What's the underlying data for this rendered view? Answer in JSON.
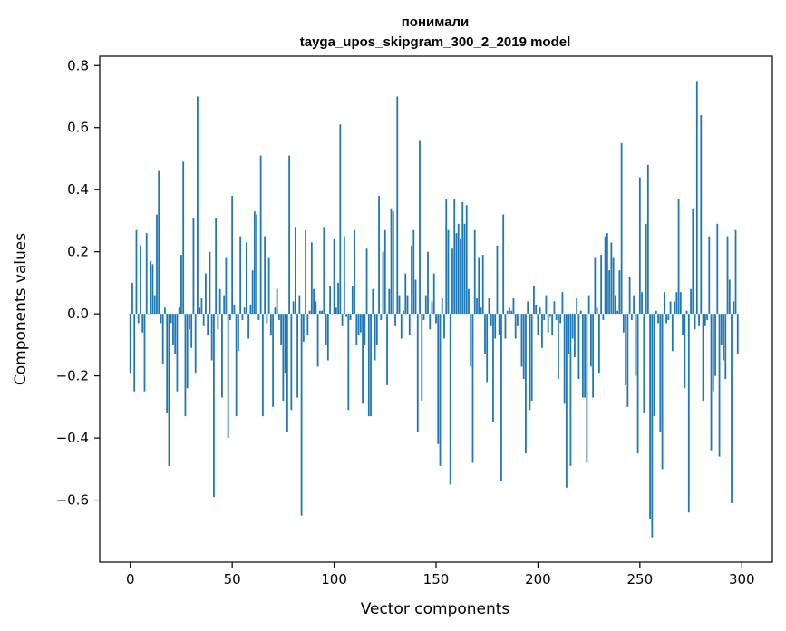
{
  "chart_data": {
    "type": "bar",
    "title_line1": "понимали",
    "title_line2": "tayga_upos_skipgram_300_2_2019 model",
    "xlabel": "Vector components",
    "ylabel": "Components values",
    "xlim": [
      -15,
      315
    ],
    "ylim": [
      -0.8,
      0.83
    ],
    "x_ticks": [
      0,
      50,
      100,
      150,
      200,
      250,
      300
    ],
    "x_tick_labels": [
      "0",
      "50",
      "100",
      "150",
      "200",
      "250",
      "300"
    ],
    "y_ticks": [
      -0.6,
      -0.4,
      -0.2,
      0.0,
      0.2,
      0.4,
      0.6,
      0.8
    ],
    "y_tick_labels": [
      "−0.6",
      "−0.4",
      "−0.2",
      "0.0",
      "0.2",
      "0.4",
      "0.6",
      "0.8"
    ],
    "bar_color": "#1f77b4",
    "values": [
      -0.19,
      0.1,
      -0.25,
      0.27,
      -0.03,
      0.22,
      -0.06,
      -0.25,
      0.26,
      0.0,
      0.17,
      0.16,
      0.06,
      0.32,
      0.46,
      -0.03,
      -0.16,
      0.02,
      -0.32,
      -0.49,
      -0.03,
      -0.1,
      -0.13,
      -0.25,
      0.02,
      0.19,
      0.49,
      -0.33,
      -0.24,
      -0.05,
      -0.11,
      0.31,
      -0.19,
      0.7,
      0.02,
      0.05,
      -0.04,
      0.13,
      -0.07,
      0.2,
      -0.15,
      -0.59,
      0.31,
      -0.05,
      0.08,
      -0.27,
      0.06,
      0.18,
      -0.4,
      -0.02,
      0.38,
      0.03,
      -0.33,
      -0.12,
      0.25,
      -0.02,
      0.02,
      0.23,
      -0.08,
      0.03,
      0.14,
      0.33,
      0.32,
      -0.02,
      0.51,
      -0.33,
      0.25,
      -0.03,
      0.18,
      -0.07,
      -0.3,
      0.02,
      0.08,
      -0.02,
      -0.1,
      -0.28,
      -0.19,
      -0.38,
      0.51,
      -0.31,
      0.04,
      0.28,
      -0.27,
      0.06,
      -0.65,
      -0.09,
      0.27,
      -0.07,
      0.01,
      0.23,
      0.08,
      0.04,
      -0.17,
      0.01,
      0.01,
      0.28,
      -0.1,
      -0.15,
      0.09,
      0.0,
      0.24,
      0.02,
      0.1,
      0.61,
      -0.04,
      0.25,
      -0.01,
      -0.31,
      -0.02,
      0.09,
      0.27,
      -0.1,
      -0.07,
      -0.06,
      -0.29,
      -0.1,
      0.21,
      -0.33,
      -0.33,
      0.08,
      -0.15,
      -0.1,
      0.38,
      -0.02,
      0.2,
      0.27,
      -0.23,
      0.08,
      0.34,
      0.33,
      -0.04,
      0.7,
      0.06,
      -0.08,
      0.01,
      0.13,
      0.06,
      -0.07,
      0.22,
      0.27,
      0.11,
      -0.38,
      0.56,
      -0.28,
      -0.02,
      0.06,
      0.2,
      -0.05,
      0.04,
      0.13,
      -0.03,
      -0.42,
      -0.49,
      0.05,
      -0.08,
      0.37,
      0.27,
      -0.55,
      0.21,
      0.37,
      0.26,
      0.29,
      0.24,
      0.36,
      0.29,
      0.35,
      0.08,
      -0.17,
      -0.48,
      0.27,
      0.05,
      0.18,
      0.02,
      0.19,
      -0.13,
      -0.22,
      0.05,
      -0.04,
      -0.35,
      -0.08,
      0.22,
      -0.07,
      -0.54,
      0.32,
      -0.08,
      0.01,
      0.02,
      0.01,
      0.05,
      -0.08,
      -0.04,
      0.0,
      -0.17,
      -0.21,
      -0.45,
      0.04,
      -0.31,
      -0.28,
      0.09,
      0.03,
      -0.07,
      0.02,
      -0.11,
      -0.02,
      0.06,
      -0.06,
      -0.01,
      -0.07,
      0.04,
      -0.02,
      -0.21,
      -0.03,
      0.07,
      -0.29,
      -0.56,
      -0.13,
      -0.49,
      -0.08,
      -0.14,
      0.05,
      -0.21,
      0.01,
      -0.27,
      -0.27,
      -0.48,
      0.06,
      -0.17,
      -0.27,
      0.18,
      0.02,
      -0.19,
      0.19,
      -0.02,
      0.25,
      0.26,
      0.14,
      0.23,
      0.18,
      0.06,
      0.01,
      0.14,
      0.55,
      -0.06,
      -0.23,
      -0.3,
      0.12,
      -0.02,
      0.06,
      -0.2,
      -0.45,
      0.44,
      0.07,
      -0.32,
      0.29,
      0.48,
      -0.66,
      -0.72,
      -0.33,
      0.01,
      -0.03,
      -0.38,
      -0.5,
      0.07,
      -0.03,
      -0.02,
      0.04,
      -0.12,
      0.04,
      0.07,
      0.37,
      0.07,
      -0.07,
      -0.24,
      0.01,
      -0.64,
      0.08,
      0.34,
      -0.05,
      0.75,
      -0.04,
      0.64,
      -0.28,
      -0.04,
      -0.02,
      0.25,
      -0.44,
      -0.25,
      -0.2,
      0.29,
      -0.46,
      -0.1,
      -0.15,
      -0.21,
      0.25,
      0.11,
      -0.61,
      0.04,
      0.27,
      -0.13
    ]
  }
}
